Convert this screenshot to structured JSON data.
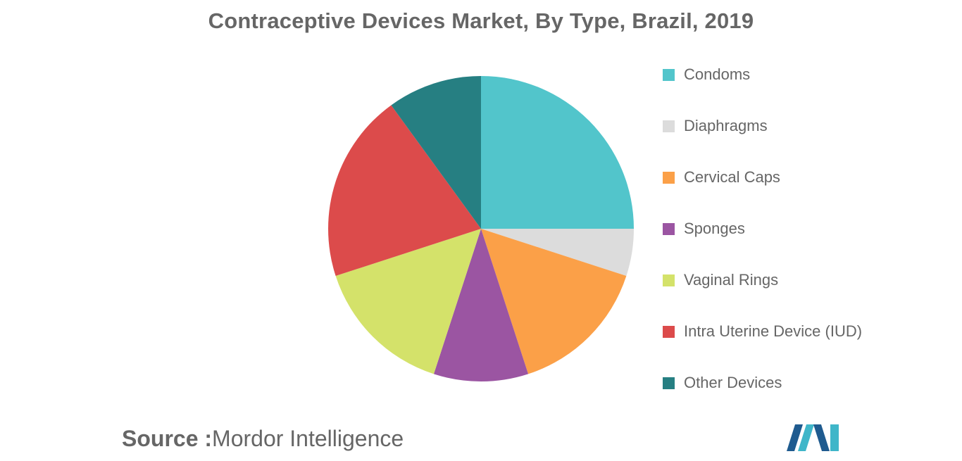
{
  "chart_data": {
    "type": "pie",
    "title": "Contraceptive Devices Market, By Type, Brazil, 2019",
    "legend_position": "right",
    "categories": [
      "Condoms",
      "Diaphragms",
      "Cervical Caps",
      "Sponges",
      "Vaginal Rings",
      "Intra Uterine Device (IUD)",
      "Other Devices"
    ],
    "values": [
      25,
      5,
      15,
      10,
      15,
      20,
      10
    ],
    "colors": [
      "#52c5cb",
      "#dcdcdc",
      "#fba048",
      "#9b55a2",
      "#d4e26a",
      "#dc4b4b",
      "#267f82"
    ]
  },
  "source": {
    "label": "Source :",
    "text": "Mordor Intelligence"
  },
  "logo": {
    "icon": "mordor-intelligence-logo-icon",
    "colors": [
      "#1f5b8f",
      "#3fb6c9"
    ]
  }
}
